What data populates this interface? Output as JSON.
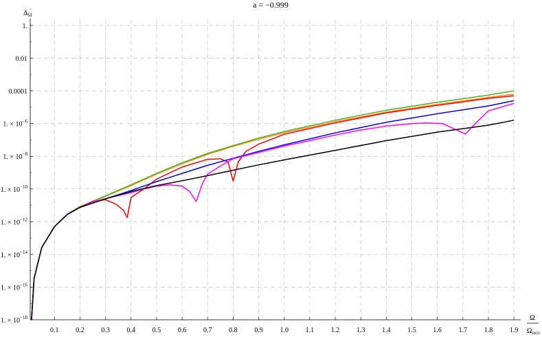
{
  "chart_data": {
    "type": "line",
    "title": "a = −0.999",
    "ylabel_main": "Δ",
    "ylabel_sub": "fd",
    "xlabel_num": "Ω",
    "xlabel_den_main": "Ω",
    "xlabel_den_sub": "isco",
    "xlim": [
      0.01,
      1.9
    ],
    "ylim_log10": [
      -18,
      1
    ],
    "y_scale": "log",
    "grid": true,
    "grid_style": "dashed",
    "x_ticks": [
      0.1,
      0.2,
      0.3,
      0.4,
      0.5,
      0.6,
      0.7,
      0.8,
      0.9,
      1.0,
      1.1,
      1.2,
      1.3,
      1.4,
      1.5,
      1.6,
      1.7,
      1.8,
      1.9
    ],
    "x_tick_labels": [
      "0.1",
      "0.2",
      "0.3",
      "0.4",
      "0.5",
      "0.6",
      "0.7",
      "0.8",
      "0.9",
      "1.0",
      "1.1",
      "1.2",
      "1.3",
      "1.4",
      "1.5",
      "1.6",
      "1.7",
      "1.8",
      "1.9"
    ],
    "y_ticks": [
      {
        "exp": 0,
        "label": "1."
      },
      {
        "exp": -2,
        "label": "0.01"
      },
      {
        "exp": -4,
        "label": "0.0001"
      },
      {
        "exp": -6,
        "label": "1. × 10",
        "sup": "−6"
      },
      {
        "exp": -8,
        "label": "1. × 10",
        "sup": "−8"
      },
      {
        "exp": -10,
        "label": "1. × 10",
        "sup": "−10"
      },
      {
        "exp": -12,
        "label": "1. × 10",
        "sup": "−12"
      },
      {
        "exp": -14,
        "label": "1. × 10",
        "sup": "−14"
      },
      {
        "exp": -16,
        "label": "1. × 10",
        "sup": "−16"
      },
      {
        "exp": -18,
        "label": "1. × 10",
        "sup": "−18"
      }
    ],
    "series": [
      {
        "color": "#ff8c1a",
        "x": [
          0.01,
          0.02,
          0.05,
          0.1,
          0.15,
          0.2,
          0.3,
          0.4,
          0.5,
          0.6,
          0.7,
          0.8,
          0.9,
          1.0,
          1.2,
          1.4,
          1.6,
          1.8,
          1.9
        ],
        "y": [
          1e-18,
          3.4e-16,
          2.6e-14,
          5e-13,
          2.8e-12,
          8e-12,
          3.5e-11,
          1.6e-10,
          8e-10,
          3.5e-09,
          1.3e-08,
          4e-08,
          1.1e-07,
          2.7e-07,
          1.3e-06,
          5e-06,
          1.5e-05,
          4e-05,
          6.3e-05
        ]
      },
      {
        "color": "#4caf1f",
        "x": [
          0.01,
          0.02,
          0.05,
          0.1,
          0.15,
          0.2,
          0.3,
          0.4,
          0.5,
          0.6,
          0.7,
          0.8,
          0.9,
          1.0,
          1.2,
          1.4,
          1.6,
          1.8,
          1.9
        ],
        "y": [
          1e-18,
          3.4e-16,
          2.6e-14,
          5e-13,
          2.8e-12,
          8.5e-12,
          3.8e-11,
          1.8e-10,
          9e-10,
          4e-09,
          1.5e-08,
          4.5e-08,
          1.3e-07,
          3.2e-07,
          1.6e-06,
          6.5e-06,
          2e-05,
          5.5e-05,
          0.0001
        ]
      },
      {
        "color": "#ff0000",
        "x": [
          0.01,
          0.02,
          0.05,
          0.1,
          0.15,
          0.2,
          0.25,
          0.3,
          0.34,
          0.37,
          0.385,
          0.4,
          0.45,
          0.5,
          0.6,
          0.7,
          0.75,
          0.78,
          0.8,
          0.82,
          0.85,
          0.9,
          1.0,
          1.2,
          1.4,
          1.6,
          1.8,
          1.9
        ],
        "y": [
          1e-18,
          3.4e-16,
          2.6e-14,
          5e-13,
          2.8e-12,
          7.5e-12,
          1.7e-11,
          2.2e-11,
          1.2e-11,
          5e-12,
          1.8e-12,
          3e-11,
          1e-10,
          4e-10,
          2.2e-09,
          6.5e-09,
          7e-09,
          4.5e-09,
          3e-10,
          4.5e-09,
          2e-08,
          5.5e-08,
          2.2e-07,
          1.1e-06,
          4.5e-06,
          1.3e-05,
          3.5e-05,
          5e-05
        ]
      },
      {
        "color": "#0000ff",
        "x": [
          0.01,
          0.02,
          0.05,
          0.1,
          0.15,
          0.2,
          0.3,
          0.4,
          0.5,
          0.6,
          0.7,
          0.8,
          0.9,
          1.0,
          1.2,
          1.4,
          1.6,
          1.8,
          1.9
        ],
        "y": [
          1e-18,
          3.4e-16,
          2.6e-14,
          5e-13,
          2.8e-12,
          7.5e-12,
          2.5e-11,
          8e-11,
          2.8e-10,
          9e-10,
          2.8e-09,
          7.5e-09,
          2e-08,
          5e-08,
          2.7e-07,
          1.2e-06,
          4e-06,
          1.2e-05,
          2.5e-05
        ]
      },
      {
        "color": "#ff00ff",
        "x": [
          0.01,
          0.02,
          0.05,
          0.1,
          0.15,
          0.2,
          0.25,
          0.3,
          0.4,
          0.45,
          0.5,
          0.55,
          0.6,
          0.63,
          0.655,
          0.68,
          0.7,
          0.75,
          0.8,
          0.9,
          1.0,
          1.1,
          1.2,
          1.3,
          1.4,
          1.5,
          1.55,
          1.62,
          1.71,
          1.76,
          1.8,
          1.9
        ],
        "y": [
          1e-18,
          3.4e-16,
          2.6e-14,
          5e-13,
          2.8e-12,
          7.5e-12,
          1.6e-11,
          2.6e-11,
          6e-11,
          1e-10,
          1.5e-10,
          1.8e-10,
          1.5e-10,
          7e-11,
          1.7e-11,
          2.2e-10,
          8e-10,
          2.5e-09,
          7e-09,
          1.7e-08,
          4.2e-08,
          9e-08,
          2e-07,
          4e-07,
          7e-07,
          1e-06,
          1.1e-06,
          1e-06,
          2.3e-07,
          1.5e-06,
          6e-06,
          1.7e-05
        ]
      },
      {
        "color": "#000000",
        "x": [
          0.01,
          0.02,
          0.05,
          0.1,
          0.15,
          0.2,
          0.3,
          0.4,
          0.5,
          0.6,
          0.7,
          0.8,
          0.9,
          1.0,
          1.2,
          1.4,
          1.6,
          1.8,
          1.9
        ],
        "y": [
          1e-18,
          3.4e-16,
          2.6e-14,
          5e-13,
          2.8e-12,
          7.5e-12,
          2.5e-11,
          7e-11,
          1.6e-10,
          3.2e-10,
          6.5e-10,
          1.4e-09,
          3e-09,
          6e-09,
          2.3e-08,
          9e-08,
          3e-07,
          8e-07,
          1.6e-06
        ]
      }
    ]
  }
}
